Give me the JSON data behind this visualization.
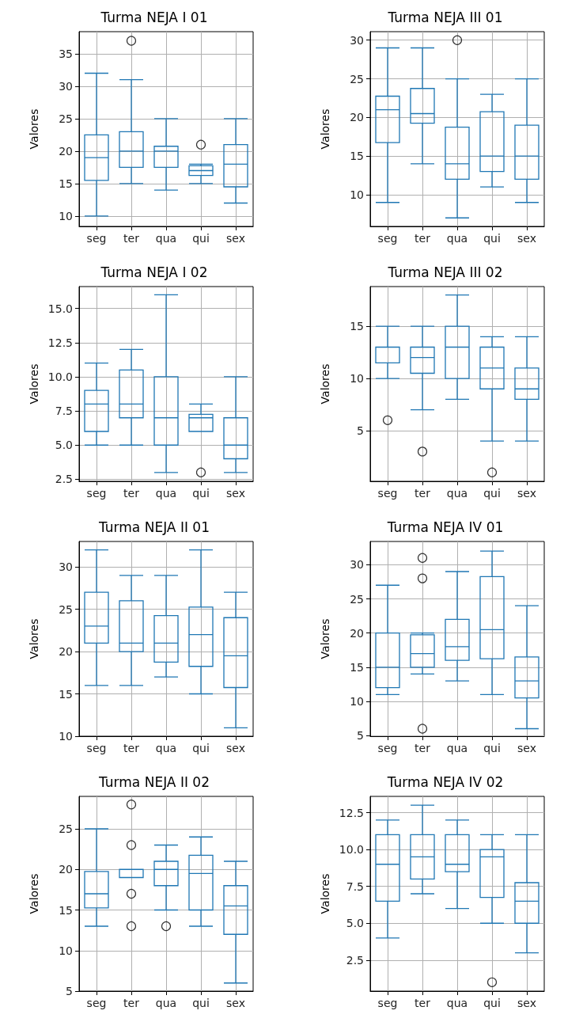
{
  "chart_data": [
    {
      "type": "box",
      "title": "Turma NEJA I 01",
      "ylabel": "Valores",
      "categories": [
        "seg",
        "ter",
        "qua",
        "qui",
        "sex"
      ],
      "ylim": [
        8.4,
        38.4
      ],
      "yticks": [
        10,
        15,
        20,
        25,
        30,
        35
      ],
      "grid": true,
      "series": [
        {
          "color": "#1f77b4",
          "boxes": [
            {
              "low": 10,
              "q1": 15.5,
              "median": 19,
              "q3": 22.5,
              "high": 32
            },
            {
              "low": 15,
              "q1": 17.5,
              "median": 20,
              "q3": 23,
              "high": 31,
              "outliers": [
                37
              ]
            },
            {
              "low": 14,
              "q1": 17.5,
              "median": 20,
              "q3": 20.75,
              "high": 25
            },
            {
              "low": 15,
              "q1": 16.25,
              "median": 17,
              "q3": 17.75,
              "high": 18,
              "outliers": [
                21
              ]
            },
            {
              "low": 12,
              "q1": 14.5,
              "median": 18,
              "q3": 21,
              "high": 25
            }
          ]
        }
      ]
    },
    {
      "type": "box",
      "title": "Turma NEJA III 01",
      "ylabel": "Valores",
      "categories": [
        "seg",
        "ter",
        "qua",
        "qui",
        "sex"
      ],
      "ylim": [
        5.9,
        31.1
      ],
      "yticks": [
        10,
        15,
        20,
        25,
        30
      ],
      "grid": true,
      "series": [
        {
          "color": "#1f77b4",
          "boxes": [
            {
              "low": 9,
              "q1": 16.75,
              "median": 21,
              "q3": 22.75,
              "high": 29
            },
            {
              "low": 14,
              "q1": 19.25,
              "median": 20.5,
              "q3": 23.75,
              "high": 29
            },
            {
              "low": 7,
              "q1": 12,
              "median": 14,
              "q3": 18.75,
              "high": 25,
              "outliers": [
                30
              ]
            },
            {
              "low": 11,
              "q1": 13,
              "median": 15,
              "q3": 20.75,
              "high": 23
            },
            {
              "low": 9,
              "q1": 12,
              "median": 15,
              "q3": 19,
              "high": 25
            }
          ]
        }
      ]
    },
    {
      "type": "box",
      "title": "Turma NEJA I 02",
      "ylabel": "Valores",
      "categories": [
        "seg",
        "ter",
        "qua",
        "qui",
        "sex"
      ],
      "ylim": [
        2.35,
        16.6
      ],
      "yticks": [
        2.5,
        {
          "value": 5,
          "label": "5.0"
        },
        7.5,
        {
          "value": 10,
          "label": "10.0"
        },
        12.5,
        {
          "value": 15,
          "label": "15.0"
        }
      ],
      "grid": true,
      "series": [
        {
          "color": "#1f77b4",
          "boxes": [
            {
              "low": 5,
              "q1": 6,
              "median": 8,
              "q3": 9,
              "high": 11
            },
            {
              "low": 5,
              "q1": 7,
              "median": 8,
              "q3": 10.5,
              "high": 12
            },
            {
              "low": 3,
              "q1": 5,
              "median": 7,
              "q3": 10,
              "high": 16
            },
            {
              "low": 6,
              "q1": 6,
              "median": 7,
              "q3": 7.25,
              "high": 8,
              "outliers": [
                3
              ]
            },
            {
              "low": 3,
              "q1": 4,
              "median": 5,
              "q3": 7,
              "high": 10
            }
          ]
        }
      ]
    },
    {
      "type": "box",
      "title": "Turma NEJA III 02",
      "ylabel": "Valores",
      "categories": [
        "seg",
        "ter",
        "qua",
        "qui",
        "sex"
      ],
      "ylim": [
        0.15,
        18.8
      ],
      "yticks": [
        5,
        10,
        15
      ],
      "grid": true,
      "series": [
        {
          "color": "#1f77b4",
          "boxes": [
            {
              "low": 10,
              "q1": 11.5,
              "median": 13,
              "q3": 13,
              "high": 15,
              "outliers": [
                6
              ]
            },
            {
              "low": 7,
              "q1": 10.5,
              "median": 12,
              "q3": 13,
              "high": 15,
              "outliers": [
                3
              ]
            },
            {
              "low": 8,
              "q1": 10,
              "median": 13,
              "q3": 15,
              "high": 18
            },
            {
              "low": 4,
              "q1": 9,
              "median": 11,
              "q3": 13,
              "high": 14,
              "outliers": [
                1
              ]
            },
            {
              "low": 4,
              "q1": 8,
              "median": 9,
              "q3": 11,
              "high": 14
            }
          ]
        }
      ]
    },
    {
      "type": "box",
      "title": "Turma NEJA II 01",
      "ylabel": "Valores",
      "categories": [
        "seg",
        "ter",
        "qua",
        "qui",
        "sex"
      ],
      "ylim": [
        10,
        33
      ],
      "yticks": [
        10,
        15,
        20,
        25,
        30
      ],
      "grid": true,
      "series": [
        {
          "color": "#1f77b4",
          "boxes": [
            {
              "low": 16,
              "q1": 21,
              "median": 23,
              "q3": 27,
              "high": 32
            },
            {
              "low": 16,
              "q1": 20,
              "median": 21,
              "q3": 26,
              "high": 29
            },
            {
              "low": 17,
              "q1": 18.75,
              "median": 21,
              "q3": 24.25,
              "high": 29
            },
            {
              "low": 15,
              "q1": 18.25,
              "median": 22,
              "q3": 25.25,
              "high": 32
            },
            {
              "low": 11,
              "q1": 15.75,
              "median": 19.5,
              "q3": 24,
              "high": 27
            }
          ]
        }
      ]
    },
    {
      "type": "box",
      "title": "Turma NEJA IV 01",
      "ylabel": "Valores",
      "categories": [
        "seg",
        "ter",
        "qua",
        "qui",
        "sex"
      ],
      "ylim": [
        4.9,
        33.4
      ],
      "yticks": [
        5,
        10,
        15,
        20,
        25,
        30
      ],
      "grid": true,
      "series": [
        {
          "color": "#1f77b4",
          "boxes": [
            {
              "low": 11,
              "q1": 12,
              "median": 15,
              "q3": 20,
              "high": 27
            },
            {
              "low": 14,
              "q1": 15,
              "median": 17,
              "q3": 19.75,
              "high": 20,
              "outliers": [
                6,
                28,
                31
              ]
            },
            {
              "low": 13,
              "q1": 16,
              "median": 18,
              "q3": 22,
              "high": 29
            },
            {
              "low": 11,
              "q1": 16.25,
              "median": 20.5,
              "q3": 28.25,
              "high": 32
            },
            {
              "low": 6,
              "q1": 10.5,
              "median": 13,
              "q3": 16.5,
              "high": 24
            }
          ]
        }
      ]
    },
    {
      "type": "box",
      "title": "Turma NEJA II 02",
      "ylabel": "Valores",
      "categories": [
        "seg",
        "ter",
        "qua",
        "qui",
        "sex"
      ],
      "ylim": [
        5,
        29
      ],
      "yticks": [
        5,
        10,
        15,
        20,
        25
      ],
      "grid": true,
      "series": [
        {
          "color": "#1f77b4",
          "boxes": [
            {
              "low": 13,
              "q1": 15.25,
              "median": 17,
              "q3": 19.75,
              "high": 25
            },
            {
              "low": 19,
              "q1": 19,
              "median": 19,
              "q3": 20,
              "high": 20,
              "outliers": [
                13,
                17,
                23,
                28
              ]
            },
            {
              "low": 15,
              "q1": 18,
              "median": 20,
              "q3": 21,
              "high": 23,
              "outliers": [
                13
              ]
            },
            {
              "low": 13,
              "q1": 15,
              "median": 19.5,
              "q3": 21.75,
              "high": 24
            },
            {
              "low": 6,
              "q1": 12,
              "median": 15.5,
              "q3": 18,
              "high": 21
            }
          ]
        }
      ]
    },
    {
      "type": "box",
      "title": "Turma NEJA IV 02",
      "ylabel": "Valores",
      "categories": [
        "seg",
        "ter",
        "qua",
        "qui",
        "sex"
      ],
      "ylim": [
        0.4,
        13.6
      ],
      "yticks": [
        2.5,
        {
          "value": 5,
          "label": "5.0"
        },
        7.5,
        {
          "value": 10,
          "label": "10.0"
        },
        12.5
      ],
      "grid": true,
      "series": [
        {
          "color": "#1f77b4",
          "boxes": [
            {
              "low": 4,
              "q1": 6.5,
              "median": 9,
              "q3": 11,
              "high": 12
            },
            {
              "low": 7,
              "q1": 8,
              "median": 9.5,
              "q3": 11,
              "high": 13
            },
            {
              "low": 6,
              "q1": 8.5,
              "median": 9,
              "q3": 11,
              "high": 12
            },
            {
              "low": 5,
              "q1": 6.75,
              "median": 9.5,
              "q3": 10,
              "high": 11,
              "outliers": [
                1
              ]
            },
            {
              "low": 3,
              "q1": 5,
              "median": 6.5,
              "q3": 7.75,
              "high": 11
            }
          ]
        }
      ]
    }
  ]
}
